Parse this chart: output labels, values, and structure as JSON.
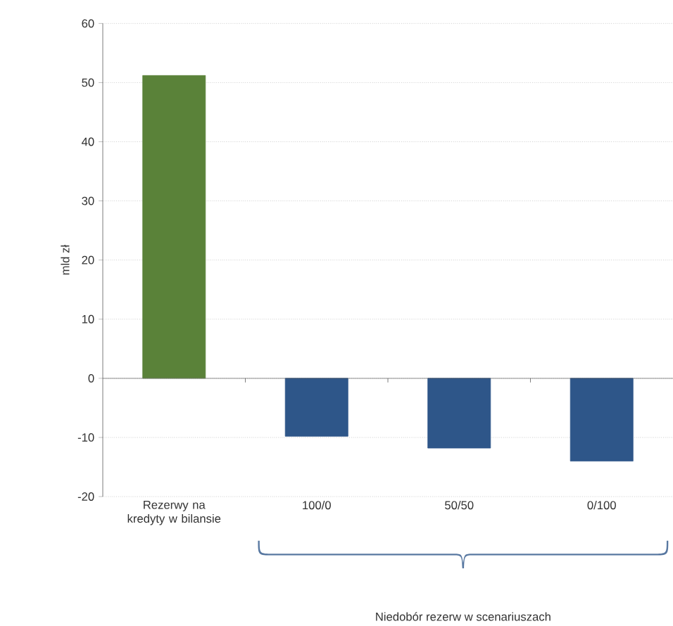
{
  "chart_data": {
    "type": "bar",
    "ylabel": "mld zł",
    "categories": [
      "Rezerwy na kredyty w bilansie",
      "100/0",
      "50/50",
      "0/100"
    ],
    "values": [
      51.2,
      -9.8,
      -11.8,
      -14.0
    ],
    "colors": [
      "#5a8239",
      "#2e5689",
      "#2e5689",
      "#2e5689"
    ],
    "ylim": [
      -20,
      60
    ],
    "yticks": [
      -20,
      -10,
      0,
      10,
      20,
      30,
      40,
      50,
      60
    ],
    "grid": "y",
    "annotations": [
      "Niedobór rezerw w scenariuszach"
    ]
  }
}
